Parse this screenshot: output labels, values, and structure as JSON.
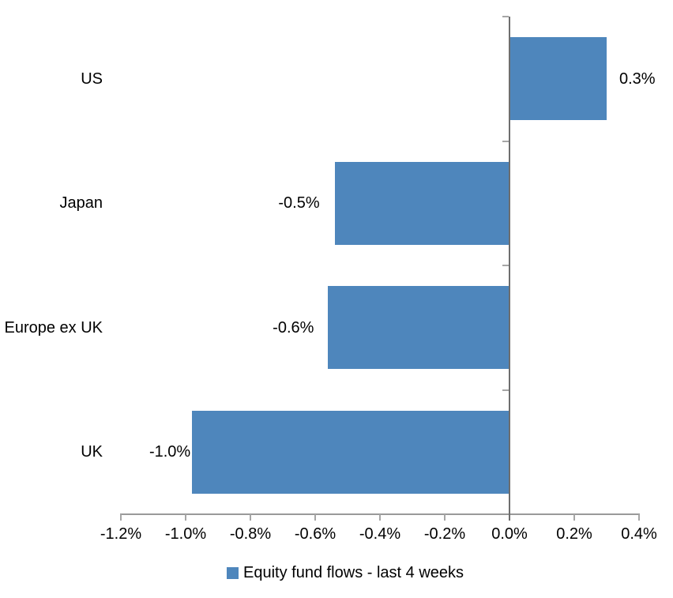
{
  "background_color": "#FFFFFF",
  "chart_data": {
    "type": "bar",
    "orientation": "horizontal",
    "title": "",
    "xlabel": "",
    "ylabel": "",
    "categories": [
      "US",
      "Japan",
      "Europe ex UK",
      "UK"
    ],
    "values": [
      0.3,
      -0.54,
      -0.56,
      -0.98
    ],
    "data_labels": [
      "0.3%",
      "-0.5%",
      "-0.6%",
      "-1.0%"
    ],
    "xlim": [
      -1.2,
      0.4
    ],
    "x_tick_step": 0.2,
    "x_tick_labels": [
      "-1.2%",
      "-1.0%",
      "-0.8%",
      "-0.6%",
      "-0.4%",
      "-0.2%",
      "0.0%",
      "0.2%",
      "0.4%"
    ],
    "grid": false,
    "legend": "Equity fund flows - last 4 weeks",
    "legend_position": "bottom-center",
    "bar_color": "#4E86BC",
    "axis_color": "#999999",
    "zero_line_color": "#6E6E6E",
    "tick_color": "#A6A6A6",
    "text_color": "#000000"
  }
}
